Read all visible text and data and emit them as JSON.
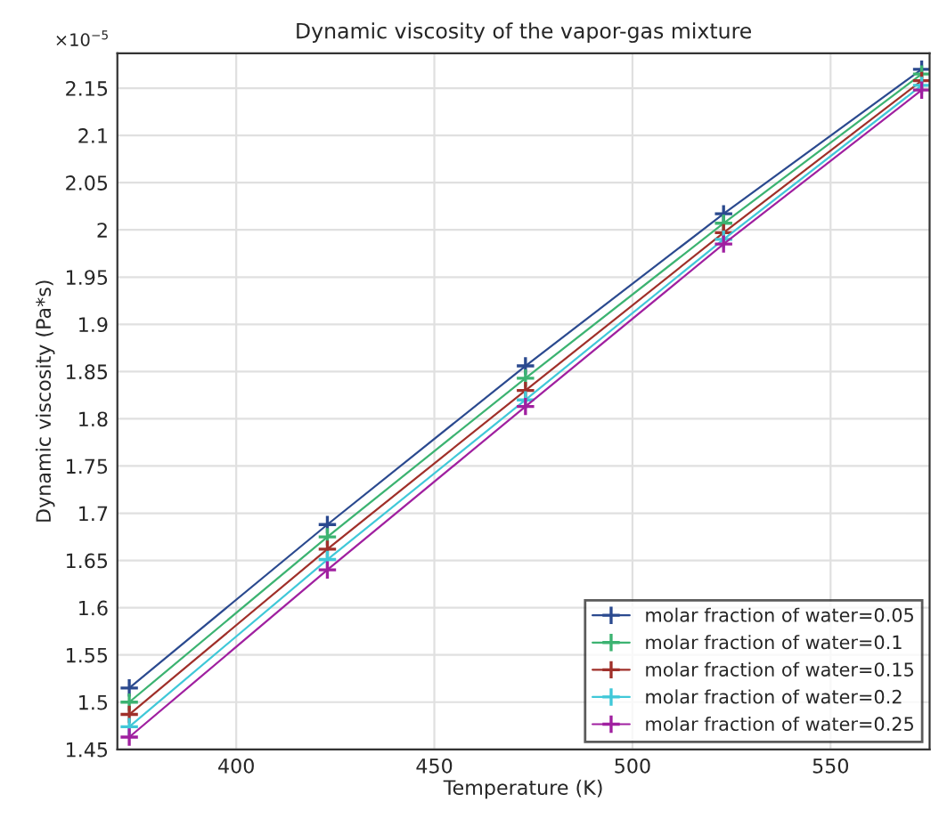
{
  "chart_data": {
    "type": "line",
    "title": "Dynamic viscosity of the vapor-gas mixture",
    "xlabel": "Temperature (K)",
    "ylabel": "Dynamic viscosity (Pa*s)",
    "annotations": [
      "×10$^{−5}$"
    ],
    "x": [
      373,
      423,
      473,
      523,
      573
    ],
    "series": [
      {
        "name": "molar fraction of water=0.05",
        "color": "#2b4a8f",
        "values": [
          1.515,
          1.688,
          1.856,
          2.017,
          2.17
        ]
      },
      {
        "name": "molar fraction of water=0.1",
        "color": "#3cb371",
        "values": [
          1.5,
          1.675,
          1.843,
          2.007,
          2.165
        ]
      },
      {
        "name": "molar fraction of water=0.15",
        "color": "#a0302a",
        "values": [
          1.487,
          1.662,
          1.83,
          1.997,
          2.158
        ]
      },
      {
        "name": "molar fraction of water=0.2",
        "color": "#40c8d8",
        "values": [
          1.474,
          1.651,
          1.82,
          1.99,
          2.153
        ]
      },
      {
        "name": "molar fraction of water=0.25",
        "color": "#a020a0",
        "values": [
          1.463,
          1.64,
          1.813,
          1.985,
          2.148
        ]
      }
    ],
    "xlim": [
      370,
      575
    ],
    "ylim": [
      1.45,
      2.187
    ],
    "xticks": [
      400,
      450,
      500,
      550
    ],
    "yticks": [
      1.45,
      1.5,
      1.55,
      1.6,
      1.65,
      1.7,
      1.75,
      1.8,
      1.85,
      1.9,
      1.95,
      2,
      2.05,
      2.1,
      2.15
    ],
    "grid": true,
    "legend": "bottom right",
    "marker": "cross",
    "line_style": "solid"
  }
}
